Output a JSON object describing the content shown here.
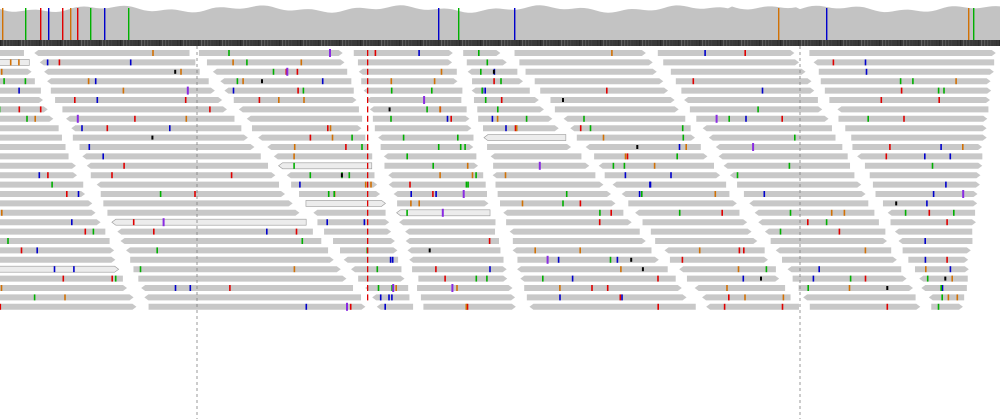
{
  "viewer": {
    "kind": "genome-alignment-view",
    "colors": {
      "read_fill": "#c8c8c8",
      "read_outline": "#9a9a9a",
      "read_light_fill": "#ececec",
      "coverage_fill": "#c3c3c3",
      "sequence_bar": "#3a3a3a",
      "guide_line": "#808080",
      "mismatch_A": "#00b000",
      "mismatch_C": "#0000cc",
      "mismatch_G": "#d17105",
      "mismatch_T": "#e00000",
      "insertion": "#8a2be2",
      "deletion": "#000000"
    },
    "coverage": {
      "has_mismatch_columns": true
    },
    "alignments": {
      "row_count": 28
    }
  }
}
